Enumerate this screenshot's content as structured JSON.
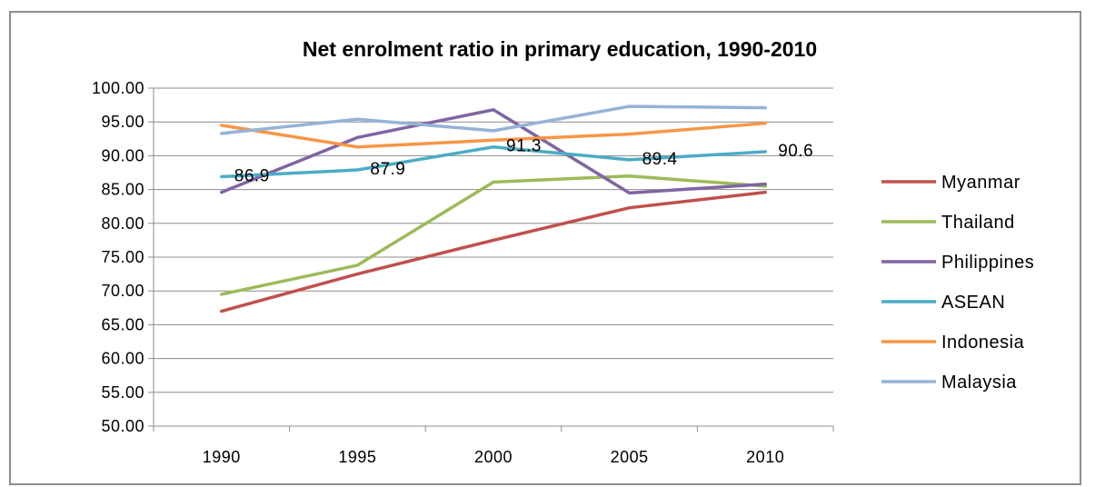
{
  "chart_data": {
    "type": "line",
    "title": "Net enrolment ratio in primary education, 1990-2010",
    "xlabel": "",
    "ylabel": "",
    "categories": [
      "1990",
      "1995",
      "2000",
      "2005",
      "2010"
    ],
    "ylim": [
      50,
      100
    ],
    "ytick_step": 5,
    "ytick_labels": [
      "50.00",
      "55.00",
      "60.00",
      "65.00",
      "70.00",
      "75.00",
      "80.00",
      "85.00",
      "90.00",
      "95.00",
      "100.00"
    ],
    "grid": "horizontal",
    "legend": "right",
    "series": [
      {
        "name": "Myanmar",
        "color": "#c0504d",
        "values": [
          67.0,
          72.5,
          77.5,
          82.3,
          84.6
        ]
      },
      {
        "name": "Thailand",
        "color": "#9bbb59",
        "values": [
          69.5,
          73.8,
          86.1,
          87.0,
          85.5
        ]
      },
      {
        "name": "Philippines",
        "color": "#8064a2",
        "values": [
          84.6,
          92.7,
          96.8,
          84.5,
          85.8
        ]
      },
      {
        "name": "ASEAN",
        "color": "#4bacc6",
        "values": [
          86.9,
          87.9,
          91.3,
          89.4,
          90.6
        ]
      },
      {
        "name": "Indonesia",
        "color": "#f79646",
        "values": [
          94.5,
          91.3,
          92.3,
          93.2,
          94.8
        ]
      },
      {
        "name": "Malaysia",
        "color": "#95b3d7",
        "values": [
          93.3,
          95.4,
          93.7,
          97.3,
          97.1
        ]
      }
    ],
    "data_labels": [
      {
        "series": "ASEAN",
        "index": 0,
        "text": "86.9"
      },
      {
        "series": "ASEAN",
        "index": 1,
        "text": "87.9"
      },
      {
        "series": "ASEAN",
        "index": 2,
        "text": "91.3"
      },
      {
        "series": "ASEAN",
        "index": 3,
        "text": "89.4"
      },
      {
        "series": "ASEAN",
        "index": 4,
        "text": "90.6"
      }
    ]
  }
}
